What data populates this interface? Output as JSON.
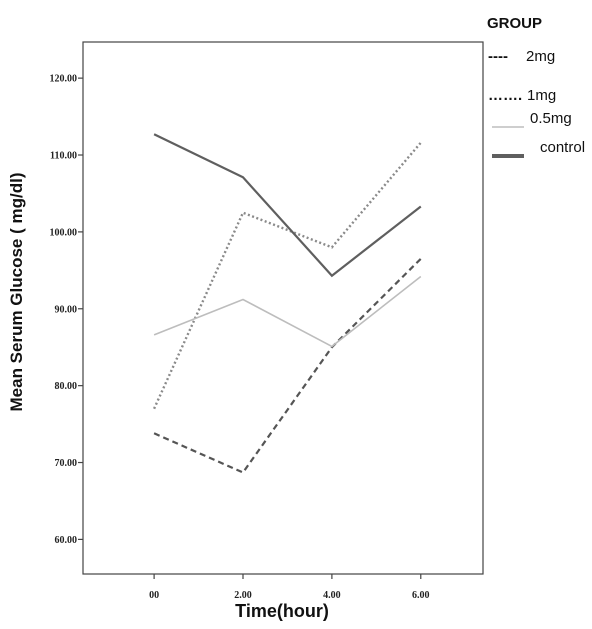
{
  "chart_data": {
    "type": "line",
    "title": "",
    "xlabel": "Time(hour)",
    "ylabel": "Mean Serum Glucose ( mg/dl)",
    "x": [
      0,
      2,
      4,
      6
    ],
    "x_tick_labels": [
      "00",
      "2.00",
      "4.00",
      "6.00"
    ],
    "xlim": [
      -1.6,
      7.4
    ],
    "ylim": [
      55.5,
      124.7
    ],
    "y_ticks": [
      60,
      70,
      80,
      90,
      100,
      110,
      120
    ],
    "y_tick_labels": [
      "60.00",
      "70.00",
      "80.00",
      "90.00",
      "100.00",
      "110.00",
      "120.00"
    ],
    "grid": false,
    "legend": {
      "title": "GROUP",
      "placement": "top-right outside plot"
    },
    "series": [
      {
        "name": "2mg",
        "legend_marker": "----",
        "style": "dashed",
        "color": "#555555",
        "values": [
          73.8,
          68.7,
          85.0,
          96.5
        ]
      },
      {
        "name": "1mg",
        "legend_marker": "…….",
        "style": "dotted",
        "color": "#8a8a8a",
        "values": [
          77.0,
          102.5,
          98.0,
          111.6
        ]
      },
      {
        "name": "0.5mg",
        "legend_marker": "",
        "style": "solid-thin",
        "color": "#bdbdbd",
        "values": [
          86.6,
          91.2,
          85.1,
          94.2
        ]
      },
      {
        "name": "control",
        "legend_marker": "",
        "style": "solid",
        "color": "#5f5f5f",
        "values": [
          112.7,
          107.1,
          94.3,
          103.3
        ]
      }
    ]
  }
}
